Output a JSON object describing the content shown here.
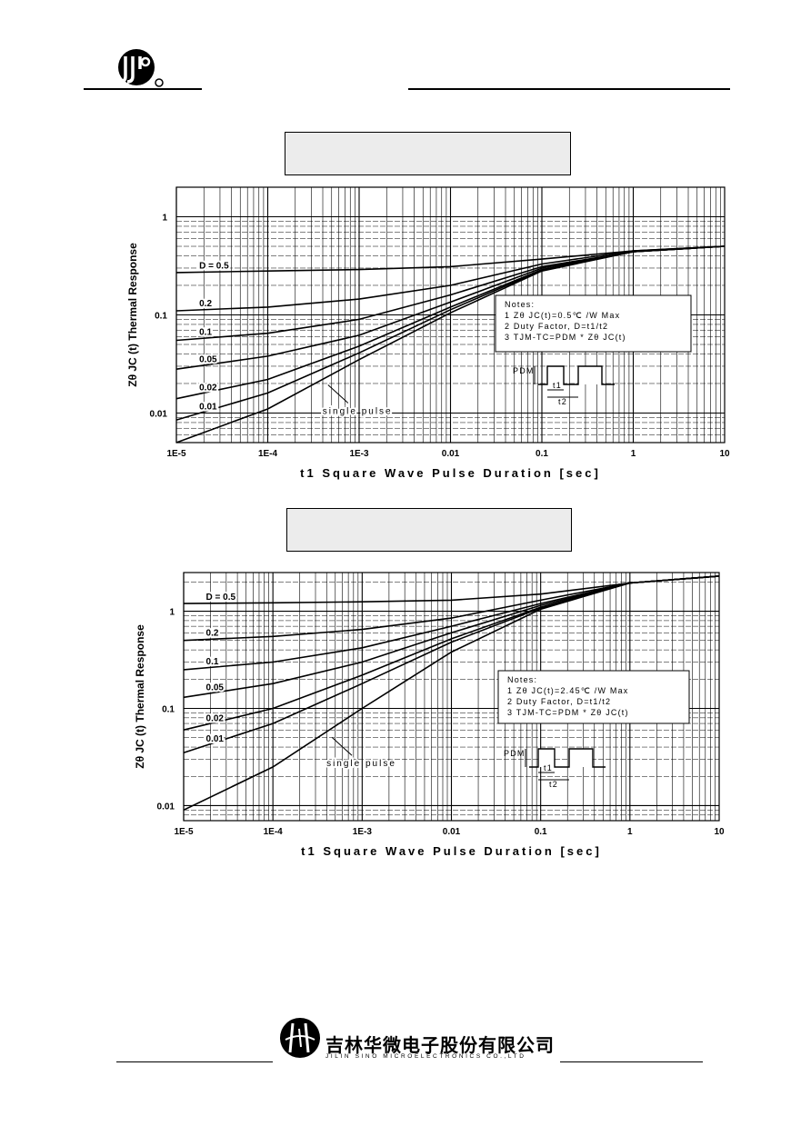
{
  "header": {
    "logo": "jsm-logo"
  },
  "footer": {
    "company_cn": "吉林华微电子股份有限公司",
    "company_en": "JILIN SINO MICROELECTRONICS CO.,LTD",
    "logo": "sino-microelectronics-logo"
  },
  "chart_data": [
    {
      "type": "line",
      "title": "",
      "xlabel": "t1 Square Wave Pulse Duration [sec]",
      "ylabel": "Zθ JC (t) Thermal Response",
      "xscale": "log",
      "yscale": "log",
      "xlim": [
        1e-05,
        10
      ],
      "ylim": [
        0.005,
        2
      ],
      "xticks": [
        "1E-5",
        "1E-4",
        "1E-3",
        "0.01",
        "0.1",
        "1",
        "10"
      ],
      "yticks": [
        "1",
        "0.1",
        "0.01"
      ],
      "grid": true,
      "series": [
        {
          "name": "D=0.5",
          "x": [
            1e-05,
            0.0001,
            0.001,
            0.01,
            0.1,
            1,
            10
          ],
          "y": [
            0.27,
            0.28,
            0.29,
            0.31,
            0.37,
            0.45,
            0.5
          ]
        },
        {
          "name": "0.2",
          "x": [
            1e-05,
            0.0001,
            0.001,
            0.01,
            0.1,
            1,
            10
          ],
          "y": [
            0.11,
            0.12,
            0.145,
            0.2,
            0.33,
            0.45,
            0.5
          ]
        },
        {
          "name": "0.1",
          "x": [
            1e-05,
            0.0001,
            0.001,
            0.01,
            0.1,
            1,
            10
          ],
          "y": [
            0.055,
            0.065,
            0.09,
            0.16,
            0.31,
            0.44,
            0.5
          ]
        },
        {
          "name": "0.05",
          "x": [
            1e-05,
            0.0001,
            0.001,
            0.01,
            0.1,
            1,
            10
          ],
          "y": [
            0.028,
            0.038,
            0.062,
            0.135,
            0.3,
            0.44,
            0.5
          ]
        },
        {
          "name": "0.02",
          "x": [
            1e-05,
            0.0001,
            0.001,
            0.01,
            0.1,
            1,
            10
          ],
          "y": [
            0.014,
            0.022,
            0.048,
            0.12,
            0.29,
            0.44,
            0.5
          ]
        },
        {
          "name": "0.01",
          "x": [
            1e-05,
            0.0001,
            0.001,
            0.01,
            0.1,
            1,
            10
          ],
          "y": [
            0.0085,
            0.016,
            0.041,
            0.113,
            0.285,
            0.44,
            0.5
          ]
        },
        {
          "name": "single pulse",
          "x": [
            1e-05,
            0.0001,
            0.001,
            0.01,
            0.1,
            1,
            10
          ],
          "y": [
            0.005,
            0.011,
            0.035,
            0.105,
            0.28,
            0.44,
            0.5
          ]
        }
      ],
      "labels": {
        "d05": "D = 0.5",
        "d02": "0.2",
        "d01": "0.1",
        "d005": "0.05",
        "d002": "0.02",
        "d001": "0.01",
        "single": "single pulse"
      },
      "notes": {
        "heading": "Notes:",
        "line1": "1 Zθ JC(t)=0.5℃ /W Max",
        "line2": "2 Duty Factor, D=t1/t2",
        "line3": "3 TJM-TC=PDM * Zθ JC(t)"
      },
      "waveform": {
        "pdm": "PDM",
        "t1": "t1",
        "t2": "t2"
      }
    },
    {
      "type": "line",
      "title": "",
      "xlabel": "t1 Square Wave Pulse Duration [sec]",
      "ylabel": "Zθ JC (t) Thermal Response",
      "xscale": "log",
      "yscale": "log",
      "xlim": [
        1e-05,
        10
      ],
      "ylim": [
        0.007,
        2.5
      ],
      "xticks": [
        "1E-5",
        "1E-4",
        "1E-3",
        "0.01",
        "0.1",
        "1",
        "10"
      ],
      "yticks": [
        "1",
        "0.1",
        "0.01"
      ],
      "grid": true,
      "series": [
        {
          "name": "D=0.5",
          "x": [
            1e-05,
            0.0001,
            0.001,
            0.01,
            0.1,
            1,
            10
          ],
          "y": [
            1.2,
            1.22,
            1.25,
            1.3,
            1.5,
            1.95,
            2.3
          ]
        },
        {
          "name": "0.2",
          "x": [
            1e-05,
            0.0001,
            0.001,
            0.01,
            0.1,
            1,
            10
          ],
          "y": [
            0.5,
            0.55,
            0.65,
            0.85,
            1.3,
            1.95,
            2.3
          ]
        },
        {
          "name": "0.1",
          "x": [
            1e-05,
            0.0001,
            0.001,
            0.01,
            0.1,
            1,
            10
          ],
          "y": [
            0.25,
            0.3,
            0.42,
            0.7,
            1.2,
            1.95,
            2.3
          ]
        },
        {
          "name": "0.05",
          "x": [
            1e-05,
            0.0001,
            0.001,
            0.01,
            0.1,
            1,
            10
          ],
          "y": [
            0.13,
            0.18,
            0.3,
            0.6,
            1.15,
            1.95,
            2.3
          ]
        },
        {
          "name": "0.02",
          "x": [
            1e-05,
            0.0001,
            0.001,
            0.01,
            0.1,
            1,
            10
          ],
          "y": [
            0.06,
            0.1,
            0.22,
            0.52,
            1.1,
            1.95,
            2.3
          ]
        },
        {
          "name": "0.01",
          "x": [
            1e-05,
            0.0001,
            0.001,
            0.01,
            0.1,
            1,
            10
          ],
          "y": [
            0.035,
            0.07,
            0.18,
            0.48,
            1.08,
            1.95,
            2.3
          ]
        },
        {
          "name": "single pulse",
          "x": [
            1e-05,
            0.0001,
            0.001,
            0.01,
            0.1,
            1,
            10
          ],
          "y": [
            0.009,
            0.025,
            0.1,
            0.38,
            1.05,
            1.95,
            2.3
          ]
        }
      ],
      "labels": {
        "d05": "D = 0.5",
        "d02": "0.2",
        "d01": "0.1",
        "d005": "0.05",
        "d002": "0.02",
        "d001": "0.01",
        "single": "single pulse"
      },
      "notes": {
        "heading": "Notes:",
        "line1": "1 Zθ JC(t)=2.45℃ /W Max",
        "line2": "2 Duty Factor, D=t1/t2",
        "line3": "3 TJM-TC=PDM * Zθ JC(t)"
      },
      "waveform": {
        "pdm": "PDM",
        "t1": "t1",
        "t2": "t2"
      }
    }
  ]
}
